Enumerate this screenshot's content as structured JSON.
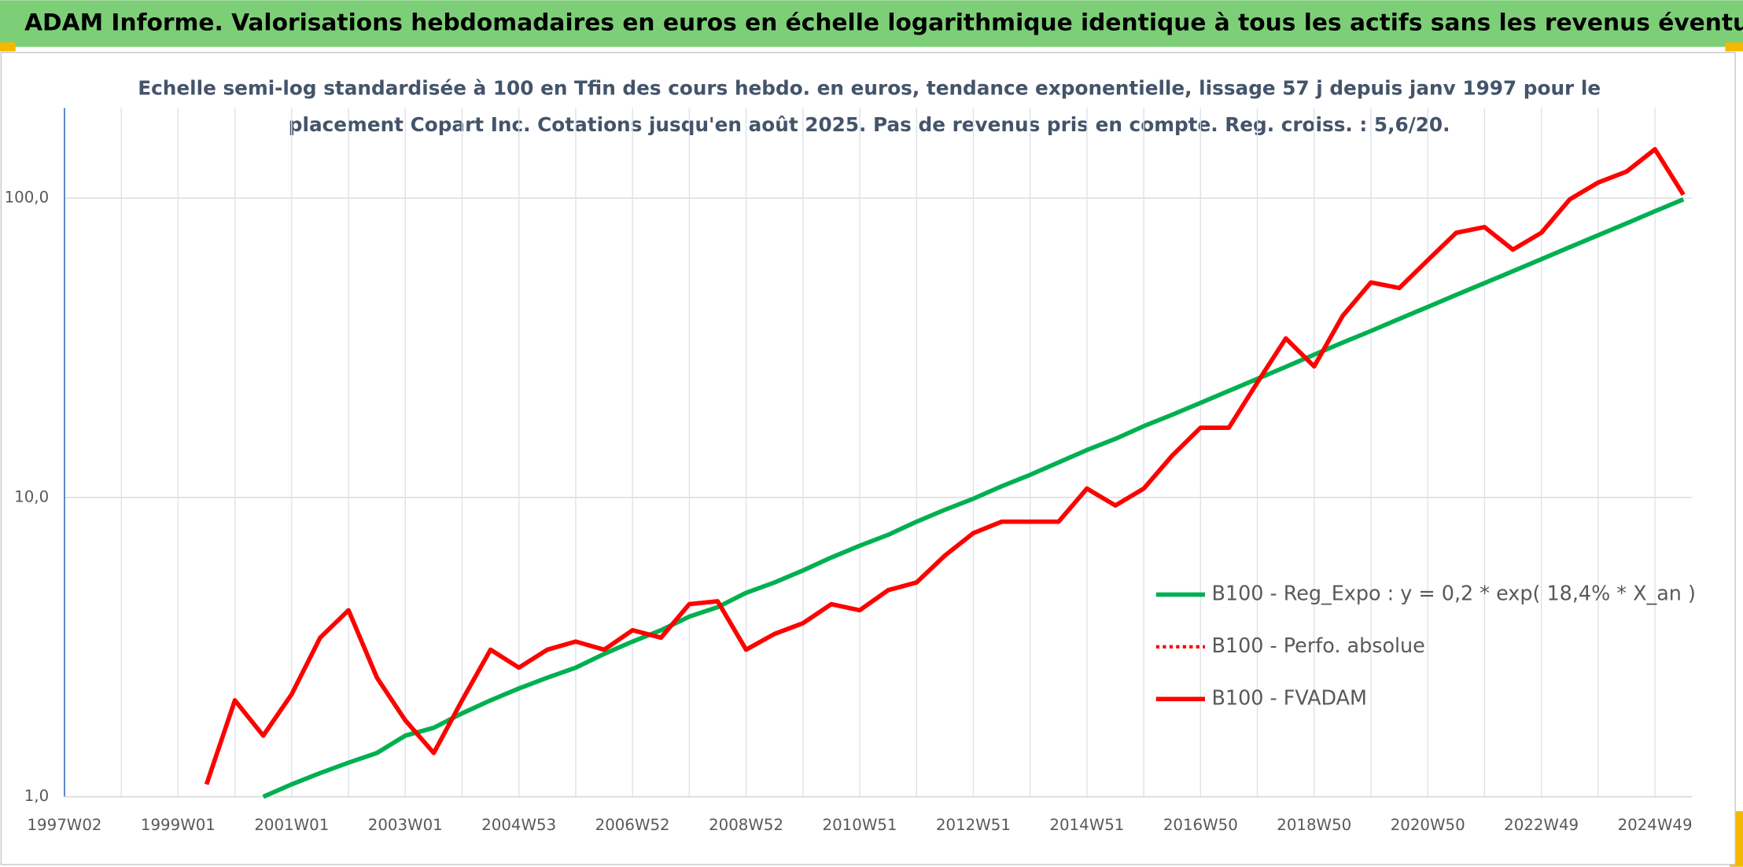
{
  "page": {
    "banner": "ADAM Informe. Valorisations hebdomadaires en euros en échelle logarithmique identique à tous les actifs sans les revenus éventuels"
  },
  "chart_data": {
    "type": "line",
    "subtitle": [
      "Echelle semi-log standardisée à 100 en Tfin des cours hebdo. en euros, tendance exponentielle, lissage 57 j depuis janv 1997 pour le",
      "placement Copart Inc. Cotations jusqu'en août 2025. Pas de revenus pris en compte. Reg. croiss. : 5,6/20."
    ],
    "categories": [
      "1997W02",
      null,
      null,
      null,
      "1999W01",
      null,
      null,
      null,
      "2001W01",
      null,
      null,
      null,
      "2003W01",
      null,
      null,
      null,
      "2004W53",
      null,
      null,
      null,
      "2006W52",
      null,
      null,
      null,
      "2008W52",
      null,
      null,
      null,
      "2010W51",
      null,
      null,
      null,
      "2012W51",
      null,
      null,
      null,
      "2014W51",
      null,
      null,
      null,
      "2016W50",
      null,
      null,
      null,
      "2018W50",
      null,
      null,
      null,
      "2020W50",
      null,
      null,
      null,
      "2022W49",
      null,
      null,
      null,
      "2024W49",
      null
    ],
    "log_scale": true,
    "grid": true,
    "ylim": [
      1,
      200
    ],
    "yticks": [
      {
        "value": 1,
        "label": "1,0"
      },
      {
        "value": 10,
        "label": "10,0"
      },
      {
        "value": 100,
        "label": "100,0"
      }
    ],
    "series": [
      {
        "name": "B100 - Reg_Expo : y = 0,2 * exp( 18,4% *  X_an )",
        "color": "#00b050",
        "style": "solid",
        "values": [
          null,
          null,
          null,
          null,
          null,
          null,
          null,
          1.0,
          1.1,
          1.2,
          1.3,
          1.4,
          1.6,
          1.7,
          1.9,
          2.1,
          2.3,
          2.5,
          2.7,
          3.0,
          3.3,
          3.6,
          4.0,
          4.3,
          4.8,
          5.2,
          5.7,
          6.3,
          6.9,
          7.5,
          8.3,
          9.1,
          9.9,
          10.9,
          11.9,
          13.1,
          14.4,
          15.7,
          17.3,
          18.9,
          20.7,
          22.7,
          24.9,
          27.3,
          30.0,
          32.9,
          36.0,
          39.5,
          43.3,
          47.5,
          52.0,
          57.0,
          62.5,
          68.6,
          75.2,
          82.4,
          90.4,
          99.1
        ]
      },
      {
        "name": "B100 - Perfo. absolue",
        "color": "#ff0000",
        "style": "dotted",
        "values": [
          null,
          null,
          null,
          null,
          null,
          1.1,
          2.1,
          1.6,
          2.2,
          3.4,
          4.2,
          2.5,
          1.8,
          1.4,
          2.1,
          3.1,
          2.7,
          3.1,
          3.3,
          3.1,
          3.6,
          3.4,
          4.4,
          4.5,
          3.1,
          3.5,
          3.8,
          4.4,
          4.2,
          4.9,
          5.2,
          6.4,
          7.6,
          8.3,
          8.3,
          8.3,
          10.7,
          9.4,
          10.7,
          13.8,
          17.1,
          17.1,
          24.2,
          34.0,
          27.4,
          40.4,
          52.3,
          50.1,
          62.0,
          76.6,
          80.0,
          67.3,
          76.6,
          99.1,
          112.7,
          122.7,
          145.6,
          102.6
        ]
      },
      {
        "name": "B100 - FVADAM",
        "color": "#ff0000",
        "style": "solid",
        "values": [
          null,
          null,
          null,
          null,
          null,
          1.1,
          2.1,
          1.6,
          2.2,
          3.4,
          4.2,
          2.5,
          1.8,
          1.4,
          2.1,
          3.1,
          2.7,
          3.1,
          3.3,
          3.1,
          3.6,
          3.4,
          4.4,
          4.5,
          3.1,
          3.5,
          3.8,
          4.4,
          4.2,
          4.9,
          5.2,
          6.4,
          7.6,
          8.3,
          8.3,
          8.3,
          10.7,
          9.4,
          10.7,
          13.8,
          17.1,
          17.1,
          24.2,
          34.0,
          27.4,
          40.4,
          52.3,
          50.1,
          62.0,
          76.6,
          80.0,
          67.3,
          76.6,
          99.1,
          112.7,
          122.7,
          145.6,
          102.6
        ]
      }
    ]
  }
}
